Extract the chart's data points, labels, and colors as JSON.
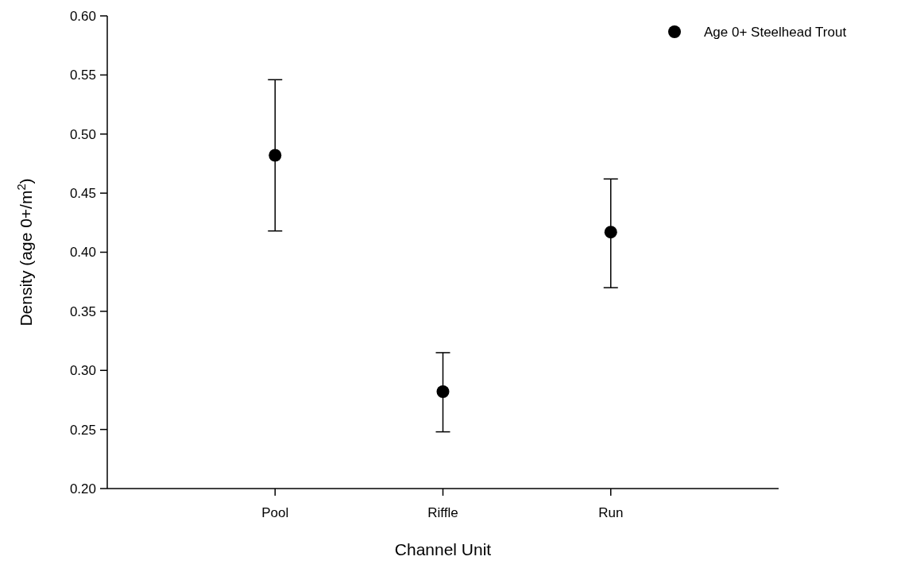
{
  "chart_data": {
    "type": "scatter",
    "xlabel": "Channel Unit",
    "ylabel": "Density (age 0+/m$^{2}$)",
    "categories": [
      "Pool",
      "Riffle",
      "Run"
    ],
    "series": [
      {
        "name": "Age 0+ Steelhead Trout",
        "color": "#000000",
        "values": [
          0.482,
          0.282,
          0.417
        ],
        "errors": [
          [
            0.418,
            0.546
          ],
          [
            0.248,
            0.315
          ],
          [
            0.37,
            0.462
          ]
        ]
      }
    ],
    "ylim": [
      0.2,
      0.6
    ],
    "yticks": [
      {
        "value": 0.2,
        "label": "0.20"
      },
      {
        "value": 0.25,
        "label": "0.25"
      },
      {
        "value": 0.3,
        "label": "0.30"
      },
      {
        "value": 0.35,
        "label": "0.35"
      },
      {
        "value": 0.4,
        "label": "0.40"
      },
      {
        "value": 0.45,
        "label": "0.45"
      },
      {
        "value": 0.5,
        "label": "0.50"
      },
      {
        "value": 0.55,
        "label": "0.55"
      },
      {
        "value": 0.6,
        "label": "0.60"
      }
    ],
    "marker": "circle",
    "legend": "top right"
  }
}
